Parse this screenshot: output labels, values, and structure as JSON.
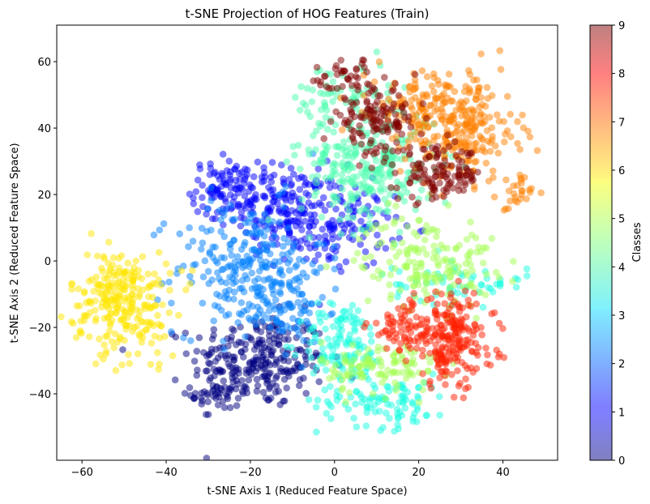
{
  "chart_data": {
    "type": "scatter",
    "title": "t-SNE Projection of HOG Features (Train)",
    "xlabel": "t-SNE Axis 1 (Reduced Feature Space)",
    "ylabel": "t-SNE Axis 2 (Reduced Feature Space)",
    "xlim": [
      -66,
      53
    ],
    "ylim": [
      -60,
      71
    ],
    "xticks": [
      -60,
      -40,
      -20,
      0,
      20,
      40
    ],
    "yticks": [
      -40,
      -20,
      0,
      20,
      40,
      60
    ],
    "grid": false,
    "marker_alpha": 0.5,
    "colormap": "jet",
    "colorbar": {
      "label": "Classes",
      "range": [
        0,
        9
      ],
      "ticks": [
        0,
        1,
        2,
        3,
        4,
        5,
        6,
        7,
        8,
        9
      ]
    },
    "clusters": [
      {
        "class": 0,
        "color": "#00007f",
        "center": [
          -18,
          -30
        ],
        "spread": [
          8,
          7
        ],
        "points": 260
      },
      {
        "class": 0,
        "color": "#00007f",
        "center": [
          -28,
          -40
        ],
        "spread": [
          3,
          4
        ],
        "points": 40
      },
      {
        "class": 1,
        "color": "#0000ff",
        "center": [
          -26,
          22
        ],
        "spread": [
          4,
          4
        ],
        "points": 90
      },
      {
        "class": 1,
        "color": "#0000ff",
        "center": [
          -12,
          17
        ],
        "spread": [
          7,
          6
        ],
        "points": 160
      },
      {
        "class": 1,
        "color": "#0000ff",
        "center": [
          0,
          10
        ],
        "spread": [
          7,
          6
        ],
        "points": 130
      },
      {
        "class": 2,
        "color": "#0080ff",
        "center": [
          -20,
          -2
        ],
        "spread": [
          9,
          10
        ],
        "points": 260
      },
      {
        "class": 2,
        "color": "#0080ff",
        "center": [
          -12,
          -15
        ],
        "spread": [
          5,
          5
        ],
        "points": 60
      },
      {
        "class": 3,
        "color": "#17ffe2",
        "center": [
          2,
          -25
        ],
        "spread": [
          5,
          6
        ],
        "points": 120
      },
      {
        "class": 3,
        "color": "#17ffe2",
        "center": [
          12,
          -42
        ],
        "spread": [
          8,
          4
        ],
        "points": 100
      },
      {
        "class": 3,
        "color": "#17ffe2",
        "center": [
          30,
          -7
        ],
        "spread": [
          8,
          3
        ],
        "points": 60
      },
      {
        "class": 4,
        "color": "#49ffad",
        "center": [
          8,
          29
        ],
        "spread": [
          8,
          9
        ],
        "points": 280
      },
      {
        "class": 4,
        "color": "#49ffad",
        "center": [
          1,
          48
        ],
        "spread": [
          6,
          6
        ],
        "points": 60
      },
      {
        "class": 5,
        "color": "#a4ff52",
        "center": [
          22,
          0
        ],
        "spread": [
          8,
          7
        ],
        "points": 170
      },
      {
        "class": 5,
        "color": "#a4ff52",
        "center": [
          11,
          -32
        ],
        "spread": [
          7,
          4
        ],
        "points": 110
      },
      {
        "class": 6,
        "color": "#ffe500",
        "center": [
          -51,
          -11
        ],
        "spread": [
          6,
          7
        ],
        "points": 230
      },
      {
        "class": 6,
        "color": "#ffe500",
        "center": [
          -46,
          -24
        ],
        "spread": [
          4,
          4
        ],
        "points": 30
      },
      {
        "class": 7,
        "color": "#ff7f00",
        "center": [
          30,
          40
        ],
        "spread": [
          7,
          8
        ],
        "points": 240
      },
      {
        "class": 7,
        "color": "#ff7f00",
        "center": [
          20,
          48
        ],
        "spread": [
          6,
          5
        ],
        "points": 80
      },
      {
        "class": 7,
        "color": "#ff7f00",
        "center": [
          43,
          20
        ],
        "spread": [
          2,
          3
        ],
        "points": 25
      },
      {
        "class": 8,
        "color": "#ff1e00",
        "center": [
          28,
          -24
        ],
        "spread": [
          5,
          7
        ],
        "points": 200
      },
      {
        "class": 8,
        "color": "#ff1e00",
        "center": [
          18,
          -20
        ],
        "spread": [
          5,
          4
        ],
        "points": 80
      },
      {
        "class": 9,
        "color": "#7f0000",
        "center": [
          10,
          42
        ],
        "spread": [
          5,
          5
        ],
        "points": 130
      },
      {
        "class": 9,
        "color": "#7f0000",
        "center": [
          25,
          26
        ],
        "spread": [
          5,
          4
        ],
        "points": 120
      },
      {
        "class": 9,
        "color": "#7f0000",
        "center": [
          3,
          55
        ],
        "spread": [
          4,
          3
        ],
        "points": 40
      }
    ]
  }
}
